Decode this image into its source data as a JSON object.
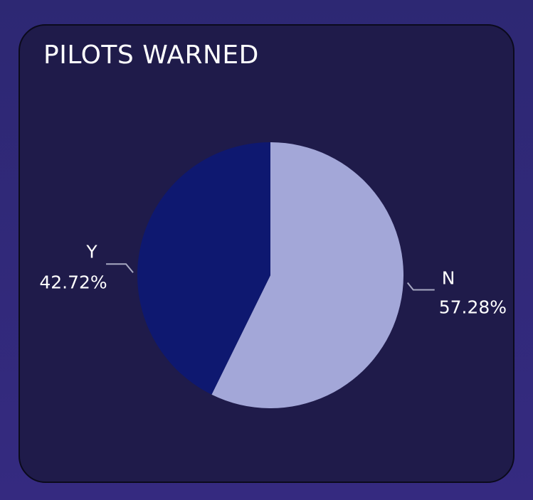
{
  "chart_data": {
    "type": "pie",
    "title": "PILOTS WARNED",
    "slices": [
      {
        "label": "N",
        "value": 57.28,
        "display": "57.28%",
        "color": "#a3a7d8"
      },
      {
        "label": "Y",
        "value": 42.72,
        "display": "42.72%",
        "color": "#0e1870"
      }
    ],
    "legend": "none"
  },
  "colors": {
    "background": "#2d2873",
    "card": "#1f1b4a",
    "leader_line": "#a7a9c2"
  }
}
